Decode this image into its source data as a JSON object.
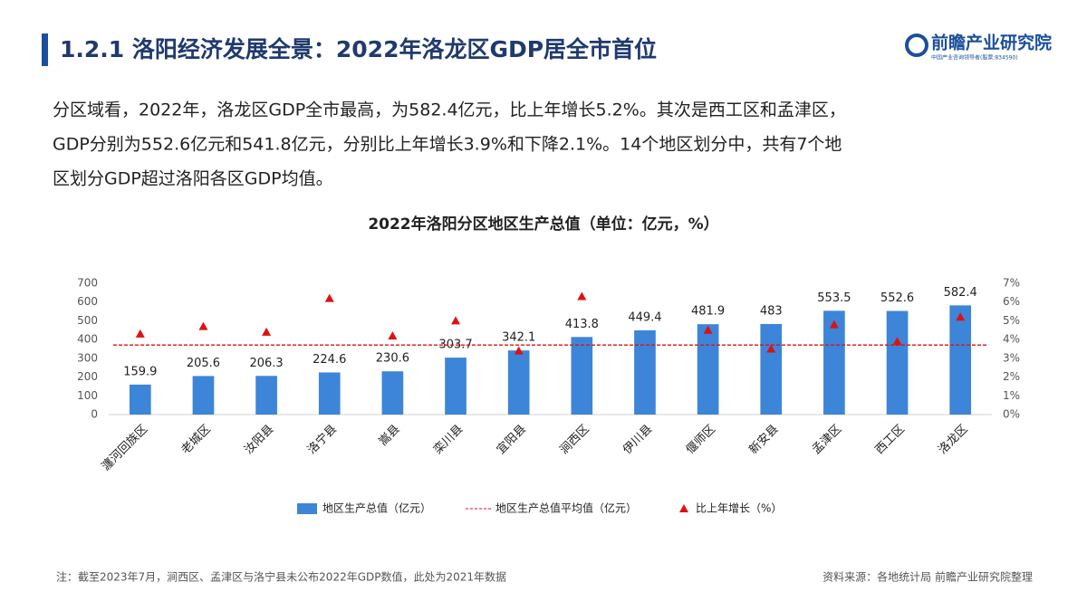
{
  "header": {
    "title": "1.2.1 洛阳经济发展全景：2022年洛龙区GDP居全市首位",
    "logo": "前瞻产业研究院",
    "logo_sub": "中国产业咨询领导者(股票:834590)"
  },
  "paragraph": [
    "分区域看，2022年，洛龙区GDP全市最高，为582.4亿元，比上年增长5.2%。其次是西工区和孟津区，",
    "GDP分别为552.6亿元和541.8亿元，分别比上年增长3.9%和下降2.1%。14个地区划分中，共有7个地",
    "区划分GDP超过洛阳各区GDP均值。"
  ],
  "chart_data": {
    "type": "bar",
    "title": "2022年洛阳分区地区生产总值（单位：亿元，%）",
    "categories": [
      "瀍河回族区",
      "老城区",
      "汝阳县",
      "洛宁县",
      "嵩县",
      "栾川县",
      "宜阳县",
      "涧西区",
      "伊川县",
      "偃师区",
      "新安县",
      "孟津区",
      "西工区",
      "洛龙区"
    ],
    "series": [
      {
        "name": "地区生产总值（亿元）",
        "color": "#3d85d8",
        "values": [
          159.9,
          205.6,
          206.3,
          224.6,
          230.6,
          303.7,
          342.1,
          413.8,
          449.4,
          481.9,
          483,
          553.5,
          552.6,
          582.4
        ]
      },
      {
        "name": "比上年增长（%）",
        "color": "#e01010",
        "axis": "y2",
        "values": [
          4.3,
          4.7,
          4.4,
          6.2,
          4.2,
          5.0,
          3.4,
          6.3,
          null,
          4.5,
          3.5,
          4.8,
          3.9,
          5.2
        ]
      }
    ],
    "average": {
      "name": "地区生产总值平均值（亿元）",
      "value": 370.7,
      "color": "#e01010"
    },
    "ylim": [
      0,
      700
    ],
    "yticks": [
      0,
      100,
      200,
      300,
      400,
      500,
      600,
      700
    ],
    "y2lim": [
      0,
      7
    ],
    "y2ticks": [
      {
        "value": 0,
        "label": "0%"
      },
      {
        "value": 1,
        "label": "1%"
      },
      {
        "value": 2,
        "label": "2%"
      },
      {
        "value": 3,
        "label": "3%"
      },
      {
        "value": 4,
        "label": "4%"
      },
      {
        "value": 5,
        "label": "5%"
      },
      {
        "value": 6,
        "label": "6%"
      },
      {
        "value": 7,
        "label": "7%"
      }
    ]
  },
  "footer": {
    "note": "注：截至2023年7月，涧西区、孟津区与洛宁县未公布2022年GDP数值，此处为2021年数据",
    "source": "资料来源：各地统计局 前瞻产业研究院整理"
  }
}
